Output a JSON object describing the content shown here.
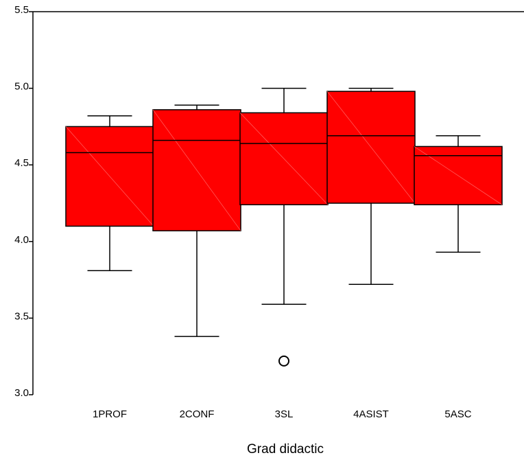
{
  "chart_data": {
    "type": "boxplot",
    "title": "",
    "xlabel": "Grad didactic",
    "ylabel": "",
    "ylim": [
      3.0,
      5.5
    ],
    "yticks": [
      "3.0",
      "3.5",
      "4.0",
      "4.5",
      "5.0",
      "5.5"
    ],
    "categories": [
      "1PROF",
      "2CONF",
      "3SL",
      "4ASIST",
      "5ASC"
    ],
    "boxes": [
      {
        "category": "1PROF",
        "min": 3.81,
        "q1": 4.1,
        "median": 4.58,
        "q3": 4.75,
        "max": 4.82,
        "outliers": []
      },
      {
        "category": "2CONF",
        "min": 3.38,
        "q1": 4.07,
        "median": 4.66,
        "q3": 4.86,
        "max": 4.89,
        "outliers": []
      },
      {
        "category": "3SL",
        "min": 3.59,
        "q1": 4.24,
        "median": 4.64,
        "q3": 4.84,
        "max": 5.0,
        "outliers": [
          3.22
        ]
      },
      {
        "category": "4ASIST",
        "min": 3.72,
        "q1": 4.25,
        "median": 4.69,
        "q3": 4.98,
        "max": 5.0,
        "outliers": []
      },
      {
        "category": "5ASC",
        "min": 3.93,
        "q1": 4.24,
        "median": 4.56,
        "q3": 4.62,
        "max": 4.69,
        "outliers": []
      }
    ],
    "box_color": "#ff0000",
    "line_color": "#000000",
    "grid": false,
    "legend": "none"
  }
}
